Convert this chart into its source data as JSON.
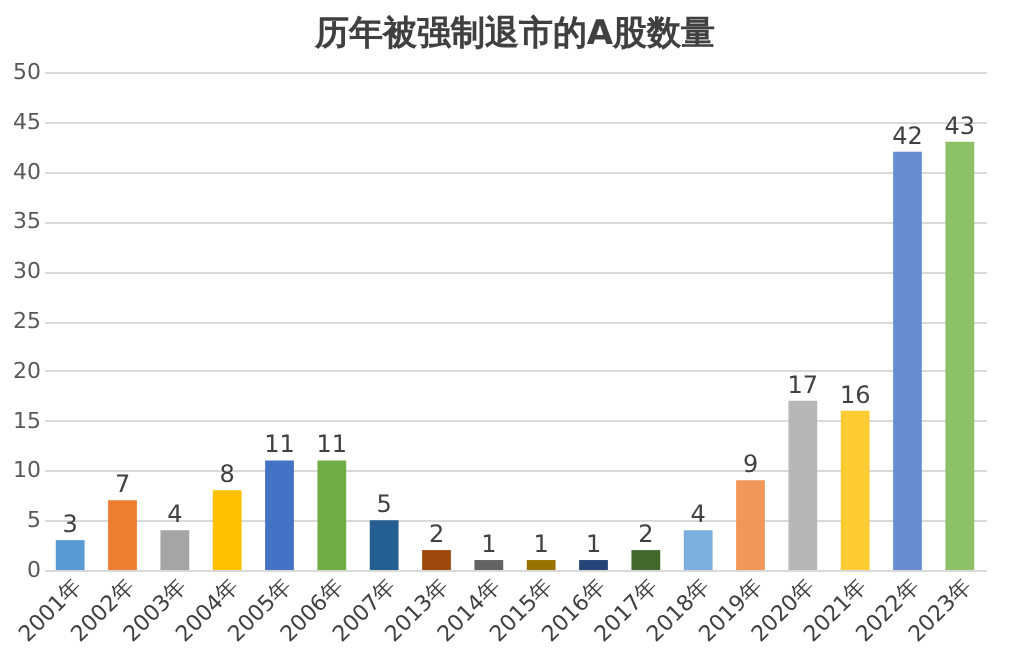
{
  "chart_data": {
    "type": "bar",
    "title": "历年被强制退市的A股数量",
    "categories": [
      "2001年",
      "2002年",
      "2003年",
      "2004年",
      "2005年",
      "2006年",
      "2007年",
      "2013年",
      "2014年",
      "2015年",
      "2016年",
      "2017年",
      "2018年",
      "2019年",
      "2020年",
      "2021年",
      "2022年",
      "2023年"
    ],
    "values": [
      3,
      7,
      4,
      8,
      11,
      11,
      5,
      2,
      1,
      1,
      1,
      2,
      4,
      9,
      17,
      16,
      42,
      43
    ],
    "colors": [
      "#5b9bd5",
      "#ed7d31",
      "#a5a5a5",
      "#ffc000",
      "#4472c4",
      "#70ad47",
      "#255e91",
      "#9e480e",
      "#636363",
      "#997300",
      "#264478",
      "#43682b",
      "#7cafdd",
      "#f1975a",
      "#b7b7b7",
      "#ffcd33",
      "#698ed0",
      "#8cc168"
    ],
    "ylim": [
      0,
      50
    ],
    "yticks": [
      0,
      5,
      10,
      15,
      20,
      25,
      30,
      35,
      40,
      45,
      50
    ],
    "grid": "y",
    "data_labels": true
  }
}
